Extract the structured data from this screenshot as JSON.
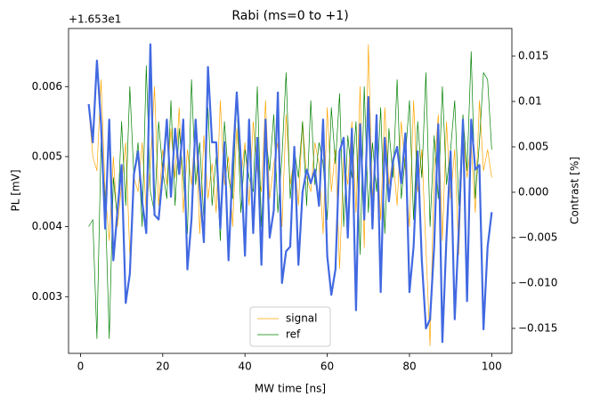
{
  "chart_data": {
    "type": "line",
    "title": "Rabi (ms=0 to +1)",
    "x_label": "MW time [ns]",
    "y_label": "PL [mV]",
    "y2_label": "Contrast [%]",
    "y_offset_text": "+1.653e1",
    "legend": "lower center",
    "xlim": [
      -2.9,
      104.9
    ],
    "xticks": [
      0,
      20,
      40,
      60,
      80,
      100
    ],
    "ylim": [
      0.00219,
      0.00683
    ],
    "yticks": [
      0.003,
      0.004,
      0.005,
      0.006
    ],
    "y2lim": [
      -0.01775,
      0.01804
    ],
    "y2ticks": [
      {
        "value": -0.015,
        "label": "−0.015"
      },
      {
        "value": -0.01,
        "label": "−0.010"
      },
      {
        "value": -0.005,
        "label": "−0.005"
      },
      {
        "value": 0,
        "label": "0.000"
      },
      0.005,
      0.01,
      0.015
    ],
    "y2_color": "#4169e1",
    "x": [
      2,
      3,
      4,
      5,
      6,
      7,
      8,
      9,
      10,
      11,
      12,
      13,
      14,
      15,
      16,
      17,
      18,
      19,
      20,
      21,
      22,
      23,
      24,
      25,
      26,
      27,
      28,
      29,
      30,
      31,
      32,
      33,
      34,
      35,
      36,
      37,
      38,
      39,
      40,
      41,
      42,
      43,
      44,
      45,
      46,
      47,
      48,
      49,
      50,
      51,
      52,
      53,
      54,
      55,
      56,
      57,
      58,
      59,
      60,
      61,
      62,
      63,
      64,
      65,
      66,
      67,
      68,
      69,
      70,
      71,
      72,
      73,
      74,
      75,
      76,
      77,
      78,
      79,
      80,
      81,
      82,
      83,
      84,
      85,
      86,
      87,
      88,
      89,
      90,
      91,
      92,
      93,
      94,
      95,
      96,
      97,
      98,
      99,
      100
    ],
    "series": [
      {
        "name": "signal",
        "color": "#ffa500",
        "width": 0.7,
        "legend": true,
        "values": [
          0.0057,
          0.005,
          0.0048,
          0.0061,
          0.0045,
          0.0038,
          0.005,
          0.004,
          0.0046,
          0.0052,
          0.0036,
          0.0047,
          0.0045,
          0.0052,
          0.0042,
          0.0049,
          0.006,
          0.0043,
          0.0051,
          0.0046,
          0.0054,
          0.0047,
          0.0057,
          0.0042,
          0.0051,
          0.0046,
          0.0055,
          0.0039,
          0.0053,
          0.0044,
          0.0049,
          0.0042,
          0.0058,
          0.0046,
          0.005,
          0.004,
          0.0054,
          0.0047,
          0.0052,
          0.0043,
          0.0055,
          0.0048,
          0.0045,
          0.0058,
          0.0044,
          0.0049,
          0.0052,
          0.004,
          0.0056,
          0.0046,
          0.005,
          0.0043,
          0.0055,
          0.0047,
          0.0045,
          0.0052,
          0.0049,
          0.0039,
          0.0057,
          0.0045,
          0.0051,
          0.0034,
          0.005,
          0.0046,
          0.0055,
          0.0042,
          0.006,
          0.0037,
          0.0066,
          0.0044,
          0.0053,
          0.0041,
          0.0057,
          0.0046,
          0.005,
          0.0043,
          0.0055,
          0.0048,
          0.004,
          0.0058,
          0.0045,
          0.0051,
          0.0037,
          0.0023,
          0.0048,
          0.0056,
          0.0038,
          0.0055,
          0.0044,
          0.0051,
          0.0036,
          0.0054,
          0.0047,
          0.0052,
          0.0042,
          0.0058,
          0.0048,
          0.0051,
          0.0047
        ]
      },
      {
        "name": "ref",
        "color": "#008000",
        "width": 0.7,
        "legend": true,
        "values": [
          0.004,
          0.0041,
          0.0024,
          0.0052,
          0.0044,
          0.0024,
          0.0047,
          0.0041,
          0.0055,
          0.0043,
          0.006,
          0.0047,
          0.0052,
          0.004,
          0.0063,
          0.0045,
          0.0042,
          0.0055,
          0.0048,
          0.0044,
          0.0058,
          0.0043,
          0.0054,
          0.0047,
          0.0039,
          0.0061,
          0.0046,
          0.0052,
          0.0041,
          0.0057,
          0.0043,
          0.005,
          0.0038,
          0.0055,
          0.0047,
          0.0044,
          0.0059,
          0.0042,
          0.0051,
          0.0047,
          0.0045,
          0.006,
          0.004,
          0.0053,
          0.0048,
          0.0056,
          0.0042,
          0.005,
          0.0062,
          0.0044,
          0.0051,
          0.0047,
          0.0055,
          0.0043,
          0.0058,
          0.0046,
          0.0052,
          0.0049,
          0.0041,
          0.0057,
          0.0049,
          0.0059,
          0.004,
          0.0053,
          0.0047,
          0.0055,
          0.0036,
          0.006,
          0.0042,
          0.0052,
          0.0045,
          0.0057,
          0.0039,
          0.0054,
          0.0047,
          0.0061,
          0.0044,
          0.005,
          0.0058,
          0.0041,
          0.0055,
          0.0047,
          0.0062,
          0.004,
          0.0053,
          0.0044,
          0.006,
          0.0046,
          0.0051,
          0.0058,
          0.0043,
          0.0056,
          0.0048,
          0.0065,
          0.0044,
          0.0052,
          0.0062,
          0.0061,
          0.0051
        ]
      },
      {
        "axis": "y2",
        "color": "#4169e1",
        "width": 2.2,
        "legend": false,
        "values": [
          0.0097,
          0.0055,
          0.0145,
          0.0075,
          -0.004,
          0.008,
          -0.0075,
          -0.002,
          0.003,
          -0.0122,
          -0.009,
          0.002,
          0.0045,
          -0.001,
          -0.0045,
          0.0163,
          -0.0025,
          -0.003,
          0.002,
          0.008,
          -0.0005,
          0.007,
          0.002,
          0.008,
          -0.0085,
          -0.003,
          0.008,
          0.0005,
          -0.0055,
          0.0138,
          0.0055,
          0.0055,
          -0.004,
          0.0055,
          -0.0075,
          0.003,
          0.011,
          0.0035,
          -0.007,
          0.008,
          -0.0045,
          0.006,
          -0.008,
          0.008,
          -0.005,
          -0.002,
          0.011,
          -0.01,
          -0.0065,
          -0.006,
          0.005,
          -0.008,
          0.0,
          0.0025,
          0.001,
          0.0025,
          -0.0015,
          0.008,
          -0.007,
          -0.0113,
          -0.0085,
          0.0045,
          0.006,
          -0.005,
          0.007,
          -0.013,
          0.0075,
          -0.003,
          0.0105,
          -0.004,
          0.0085,
          -0.011,
          0.006,
          -0.001,
          0.0035,
          0.005,
          0.001,
          0.0065,
          -0.011,
          -0.006,
          0.0045,
          -0.0075,
          -0.015,
          -0.014,
          -0.006,
          0.0075,
          -0.0165,
          -0.005,
          0.0045,
          -0.014,
          -0.004,
          0.008,
          -0.012,
          0.008,
          0.0025,
          0.003,
          -0.0151,
          -0.006,
          -0.0022
        ]
      }
    ]
  }
}
